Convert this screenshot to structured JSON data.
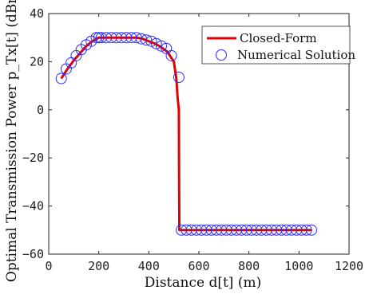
{
  "chart_data": {
    "type": "line",
    "xlabel": "Distance d[t] (m)",
    "ylabel": "Optimal Transmission Power p_Tx[t] (dBm)",
    "xlim": [
      0,
      1200
    ],
    "ylim": [
      -60,
      40
    ],
    "x_ticks": [
      "0",
      "200",
      "400",
      "600",
      "800",
      "1000",
      "1200"
    ],
    "y_ticks": [
      "-60",
      "-40",
      "-20",
      "0",
      "20",
      "40"
    ],
    "grid": false,
    "legend_position": "top-right",
    "legend": [
      "Closed-Form",
      "Numerical Solution"
    ],
    "series": [
      {
        "name": "Closed-Form",
        "style": "line",
        "color": "#e00000",
        "x": [
          50,
          75,
          100,
          125,
          150,
          175,
          200,
          225,
          250,
          275,
          300,
          325,
          350,
          375,
          400,
          425,
          450,
          475,
          500,
          510,
          515,
          520,
          521,
          522,
          600,
          700,
          800,
          900,
          1000,
          1050
        ],
        "y": [
          13,
          17,
          20.5,
          23.5,
          26.5,
          28.5,
          30,
          30,
          30,
          30,
          30,
          30,
          30,
          29.5,
          28.5,
          27.5,
          26,
          24,
          20,
          13,
          5,
          0,
          -30,
          -50,
          -50,
          -50,
          -50,
          -50,
          -50,
          -50
        ]
      },
      {
        "name": "Numerical Solution",
        "style": "markers",
        "color": "#2c2cff",
        "x": [
          50,
          70,
          90,
          110,
          130,
          150,
          170,
          190,
          200,
          210,
          230,
          250,
          270,
          290,
          310,
          330,
          350,
          370,
          390,
          410,
          430,
          450,
          470,
          490,
          520,
          530,
          550,
          570,
          590,
          610,
          630,
          650,
          670,
          690,
          710,
          730,
          750,
          770,
          790,
          810,
          830,
          850,
          870,
          890,
          910,
          930,
          950,
          970,
          990,
          1010,
          1030,
          1050
        ],
        "y": [
          13,
          17,
          19.5,
          22.5,
          25,
          27,
          28.5,
          30,
          30,
          30,
          30,
          30,
          30,
          30,
          30,
          30,
          30,
          29.5,
          29,
          28.5,
          27.5,
          26.5,
          25.5,
          22.5,
          13.5,
          -50,
          -50,
          -50,
          -50,
          -50,
          -50,
          -50,
          -50,
          -50,
          -50,
          -50,
          -50,
          -50,
          -50,
          -50,
          -50,
          -50,
          -50,
          -50,
          -50,
          -50,
          -50,
          -50,
          -50,
          -50,
          -50,
          -50
        ]
      }
    ]
  }
}
